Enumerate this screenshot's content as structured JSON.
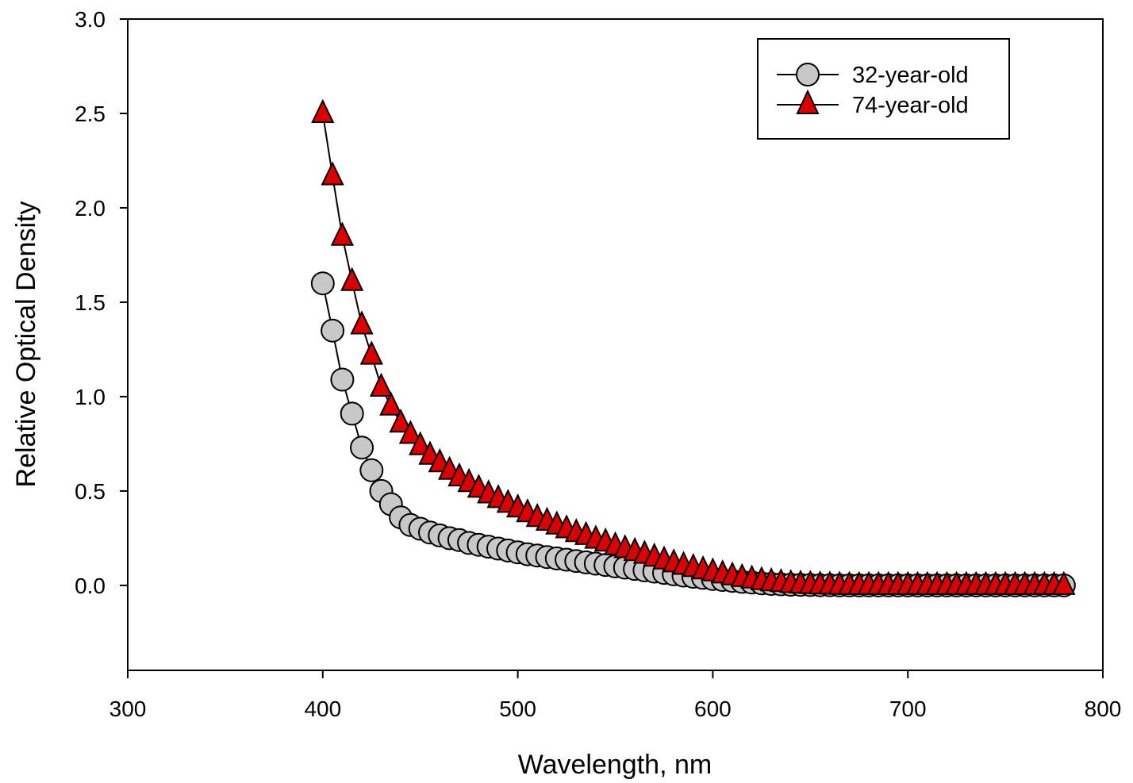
{
  "chart_data": {
    "type": "scatter",
    "title": "",
    "xlabel": "Wavelength, nm",
    "ylabel": "Relative Optical Density",
    "xlim": [
      300,
      800
    ],
    "ylim": [
      -0.45,
      3.0
    ],
    "x_ticks": [
      300,
      400,
      500,
      600,
      700,
      800
    ],
    "y_ticks": [
      0.0,
      0.5,
      1.0,
      1.5,
      2.0,
      2.5,
      3.0
    ],
    "x_tick_labels": [
      "300",
      "400",
      "500",
      "600",
      "700",
      "800"
    ],
    "y_tick_labels": [
      "0.0",
      "0.5",
      "1.0",
      "1.5",
      "2.0",
      "2.5",
      "3.0"
    ],
    "grid": false,
    "legend_position": "top-right",
    "x": [
      400,
      405,
      410,
      415,
      420,
      425,
      430,
      435,
      440,
      445,
      450,
      455,
      460,
      465,
      470,
      475,
      480,
      485,
      490,
      495,
      500,
      505,
      510,
      515,
      520,
      525,
      530,
      535,
      540,
      545,
      550,
      555,
      560,
      565,
      570,
      575,
      580,
      585,
      590,
      595,
      600,
      605,
      610,
      615,
      620,
      625,
      630,
      635,
      640,
      645,
      650,
      655,
      660,
      665,
      670,
      675,
      680,
      685,
      690,
      695,
      700,
      705,
      710,
      715,
      720,
      725,
      730,
      735,
      740,
      745,
      750,
      755,
      760,
      765,
      770,
      775,
      780
    ],
    "series": [
      {
        "name": "32-year-old",
        "marker": "circle",
        "fill_color": "#c8c8c8",
        "edge_color": "#000000",
        "values": [
          1.6,
          1.35,
          1.09,
          0.91,
          0.73,
          0.61,
          0.5,
          0.43,
          0.36,
          0.32,
          0.3,
          0.28,
          0.265,
          0.25,
          0.24,
          0.225,
          0.215,
          0.205,
          0.195,
          0.185,
          0.175,
          0.165,
          0.158,
          0.15,
          0.143,
          0.136,
          0.129,
          0.122,
          0.115,
          0.108,
          0.101,
          0.094,
          0.087,
          0.08,
          0.073,
          0.066,
          0.059,
          0.052,
          0.046,
          0.04,
          0.034,
          0.029,
          0.024,
          0.019,
          0.015,
          0.011,
          0.008,
          0.006,
          0.004,
          0.003,
          0.002,
          0.001,
          0.001,
          0.0,
          0.0,
          0.0,
          0.0,
          0.0,
          0.0,
          0.0,
          0.0,
          0.0,
          0.0,
          0.0,
          0.0,
          0.0,
          0.0,
          0.0,
          0.0,
          0.0,
          0.0,
          0.0,
          0.0,
          0.0,
          0.0,
          0.0,
          0.0
        ]
      },
      {
        "name": "74-year-old",
        "marker": "triangle",
        "fill_color": "#dd0000",
        "edge_color": "#000000",
        "values": [
          2.5,
          2.17,
          1.85,
          1.61,
          1.38,
          1.22,
          1.05,
          0.95,
          0.86,
          0.8,
          0.74,
          0.69,
          0.65,
          0.61,
          0.575,
          0.545,
          0.515,
          0.485,
          0.46,
          0.435,
          0.41,
          0.385,
          0.36,
          0.34,
          0.32,
          0.3,
          0.28,
          0.265,
          0.245,
          0.23,
          0.21,
          0.195,
          0.18,
          0.165,
          0.15,
          0.135,
          0.12,
          0.107,
          0.095,
          0.083,
          0.072,
          0.061,
          0.051,
          0.042,
          0.034,
          0.026,
          0.02,
          0.015,
          0.01,
          0.007,
          0.005,
          0.003,
          0.002,
          0.001,
          0.0,
          0.0,
          0.0,
          0.0,
          0.0,
          0.0,
          0.0,
          0.0,
          0.0,
          0.0,
          0.0,
          0.0,
          0.0,
          0.0,
          0.0,
          0.0,
          0.0,
          0.0,
          0.0,
          0.0,
          0.0,
          0.0,
          0.0
        ]
      }
    ]
  }
}
